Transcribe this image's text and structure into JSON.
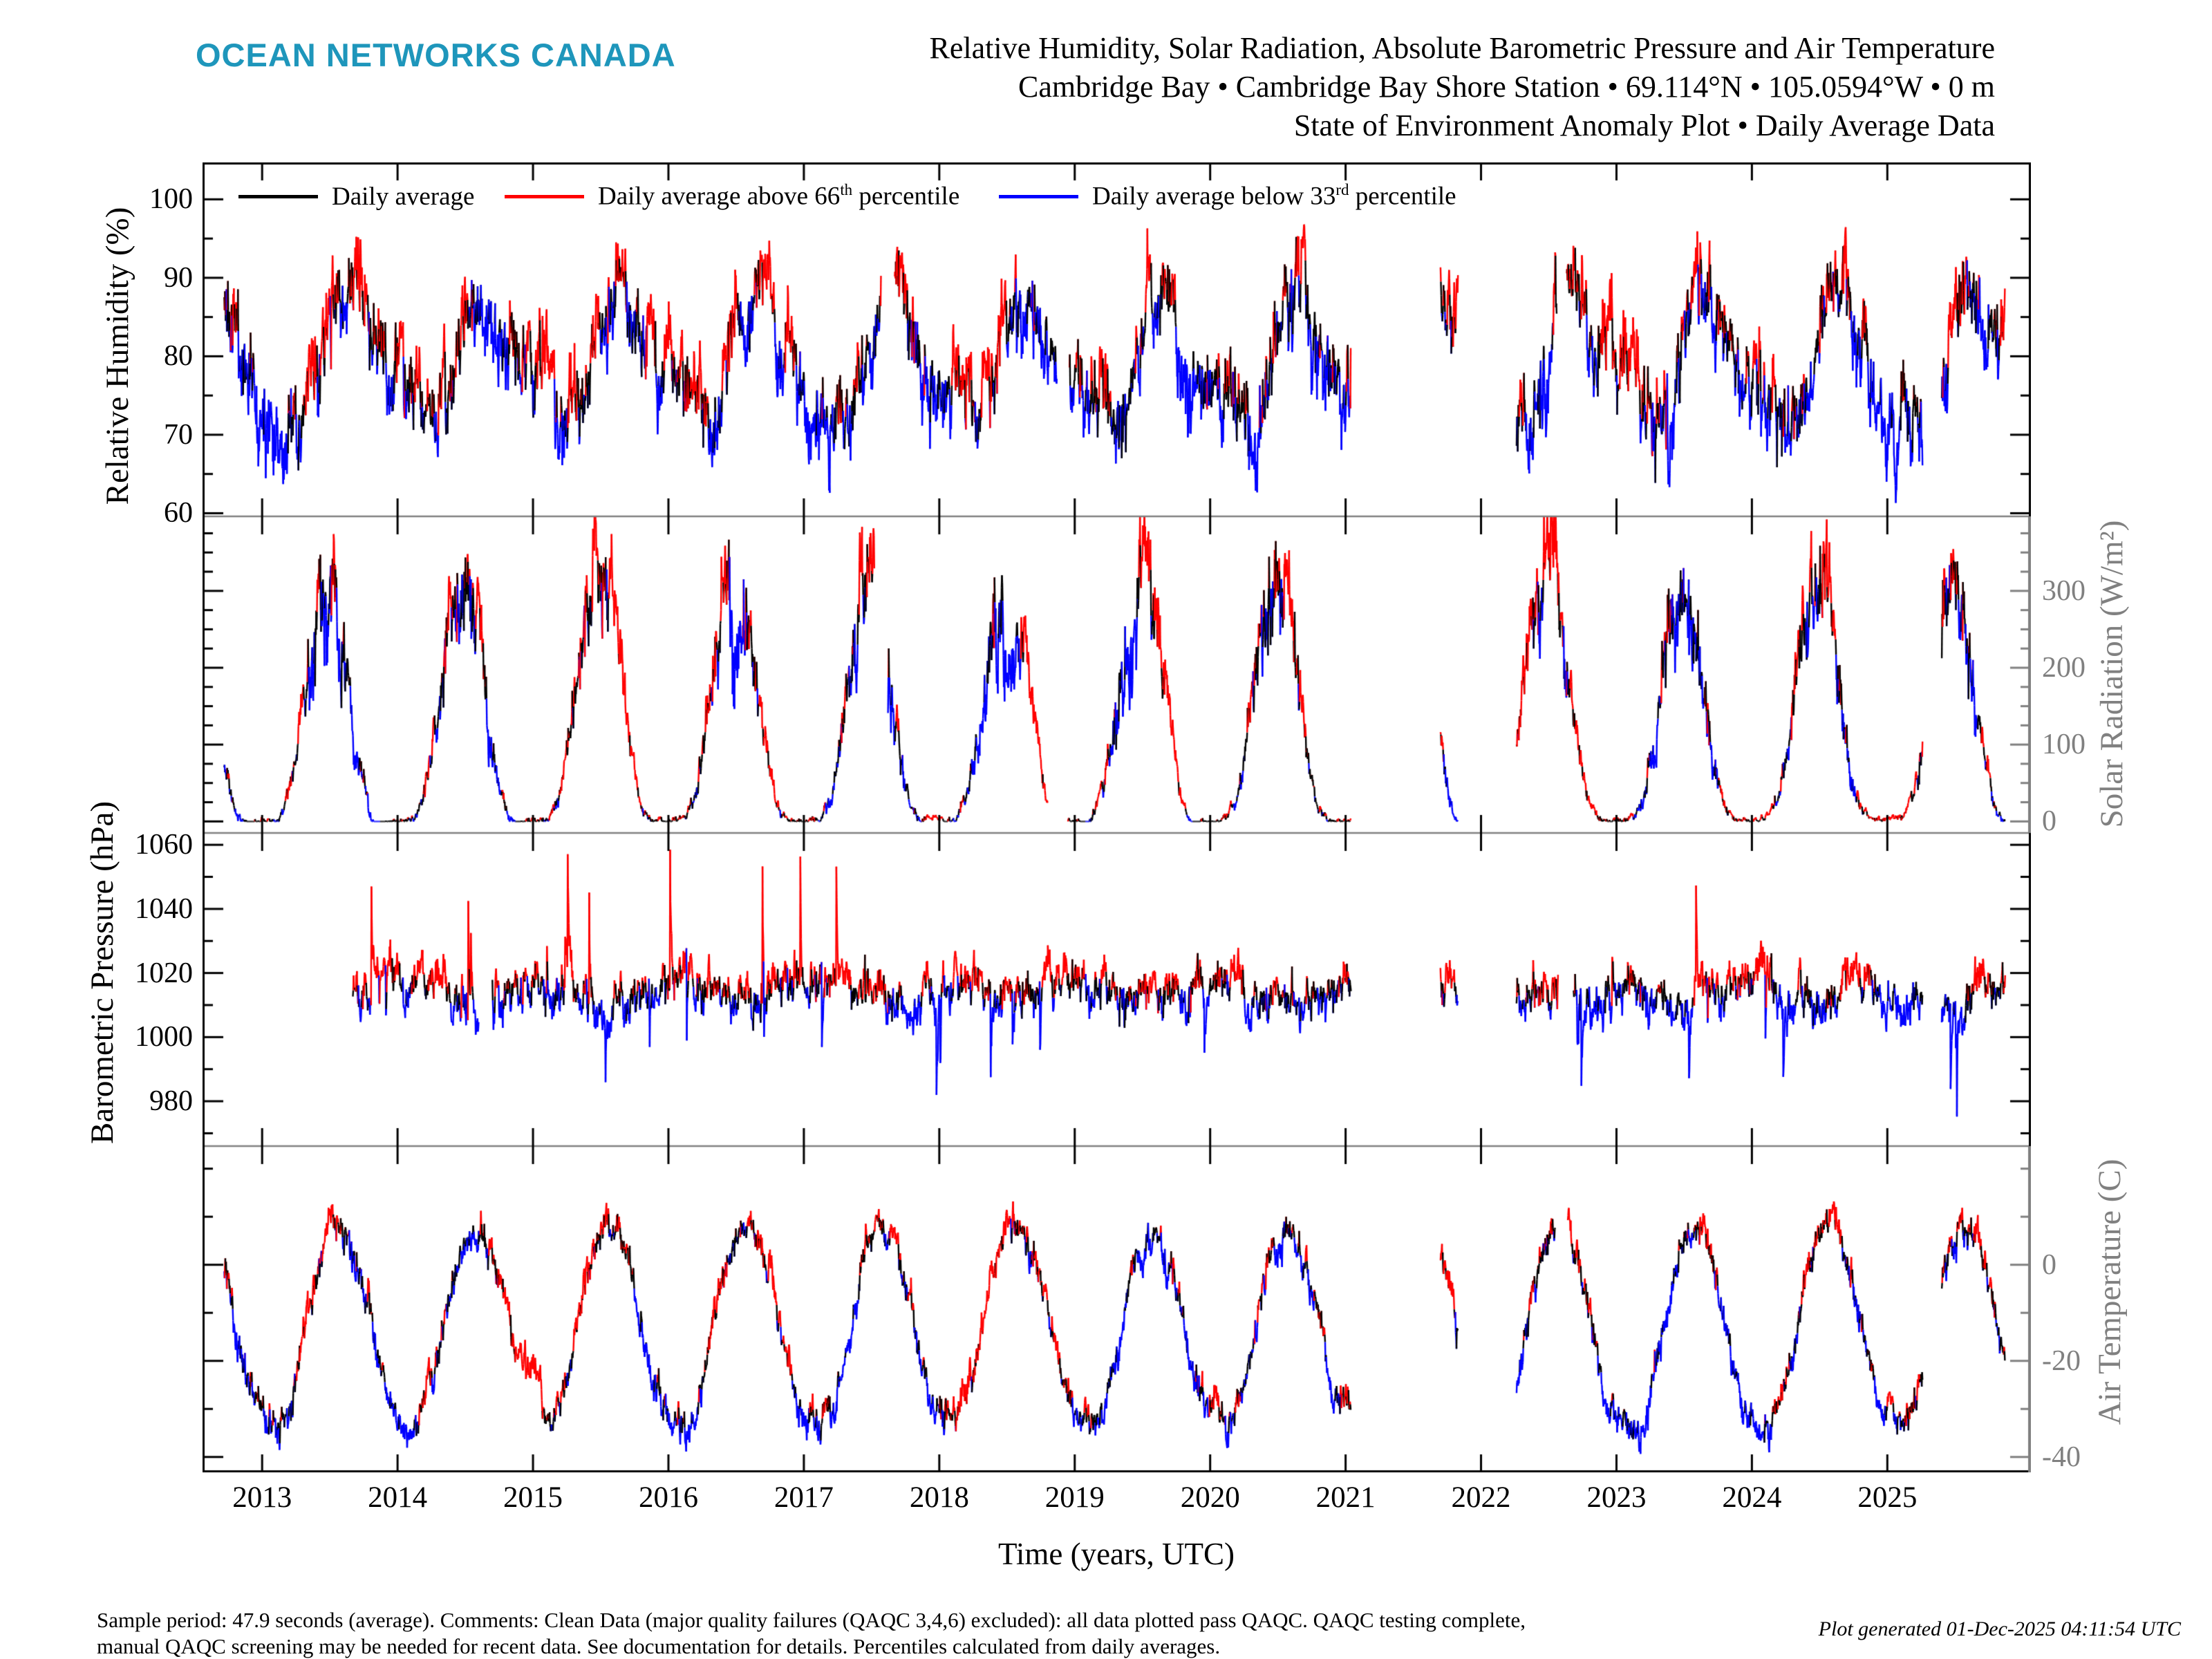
{
  "header": {
    "logo": "OCEAN NETWORKS CANADA",
    "title_line1": "Relative Humidity, Solar Radiation, Absolute Barometric Pressure and Air Temperature",
    "title_line2": "Cambridge Bay • Cambridge Bay Shore Station • 69.114°N • 105.0594°W • 0 m",
    "title_line3": "State of Environment Anomaly Plot • Daily Average Data"
  },
  "legend": [
    {
      "label_pre": "Daily average",
      "label_sup": "",
      "label_post": "",
      "color": "#000000"
    },
    {
      "label_pre": "Daily average above 66",
      "label_sup": "th",
      "label_post": " percentile",
      "color": "#ff0000"
    },
    {
      "label_pre": "Daily average below 33",
      "label_sup": "rd",
      "label_post": " percentile",
      "color": "#0000ff"
    }
  ],
  "footer": {
    "line1": "Sample period: 47.9 seconds (average). Comments: Clean Data (major quality failures (QAQC 3,4,6) excluded): all data plotted pass QAQC. QAQC testing complete,",
    "line2": "manual QAQC screening may be needed for recent data. See documentation for details. Percentiles calculated from daily averages.",
    "generated": "Plot generated 01-Dec-2025 04:11:54 UTC"
  },
  "chart_data": {
    "type": "line",
    "x_axis": {
      "label": "Time (years, UTC)",
      "ticks": [
        2013,
        2014,
        2015,
        2016,
        2017,
        2018,
        2019,
        2020,
        2021,
        2022,
        2023,
        2024,
        2025
      ],
      "xlim": [
        2012.56,
        2026.06
      ]
    },
    "series_colors": {
      "daily_average": "#000000",
      "above_66th_percentile": "#ff0000",
      "below_33rd_percentile": "#0000ff"
    },
    "axis_gray": "#808080",
    "panels": [
      {
        "id": "relative_humidity",
        "ylabel": "Relative Humidity (%)",
        "label_side": "left",
        "axis_color": "#000000",
        "ylim": [
          59.6,
          104.7
        ],
        "yticks": [
          60,
          70,
          80,
          90,
          100
        ],
        "minor_step": 5,
        "monthly_mean": [
          77,
          75,
          73,
          72,
          74,
          80,
          86,
          89,
          87,
          83,
          80,
          78
        ],
        "spread": 4.0,
        "data_start": 2012.72,
        "data_end": 2025.87,
        "gaps": [
          [
            2017.57,
            2017.67
          ],
          [
            2018.87,
            2018.96
          ],
          [
            2021.04,
            2021.7
          ],
          [
            2021.83,
            2022.26
          ],
          [
            2022.56,
            2022.63
          ],
          [
            2025.26,
            2025.4
          ]
        ],
        "synthesis": {
          "seed": 11,
          "noise": 5.0,
          "clip_min": 58,
          "clip_max": 99.8
        }
      },
      {
        "id": "solar_radiation",
        "ylabel": "Solar Radiation (W/m²)",
        "label_side": "right",
        "axis_color": "#808080",
        "ylim": [
          -15,
          397
        ],
        "yticks": [
          0,
          100,
          200,
          300
        ],
        "minor_step": 25,
        "monthly_mean": [
          0,
          4,
          40,
          130,
          240,
          310,
          295,
          205,
          90,
          18,
          1,
          0
        ],
        "spread_base": 4,
        "spread_scale": 0.16,
        "data_start": 2012.72,
        "data_end": 2025.87,
        "gaps": [
          [
            2017.52,
            2017.62
          ],
          [
            2018.8,
            2018.95
          ],
          [
            2021.04,
            2021.7
          ],
          [
            2021.83,
            2022.26
          ],
          [
            2025.26,
            2025.4
          ]
        ],
        "synthesis": {
          "seed": 23,
          "noise_base": 4,
          "noise_scale": 0.2,
          "clip_min": 0
        }
      },
      {
        "id": "barometric_pressure",
        "ylabel": "Barometric Pressure (hPa)",
        "label_side": "left",
        "axis_color": "#000000",
        "ylim": [
          966,
          1063.7
        ],
        "yticks": [
          980,
          1000,
          1020,
          1040,
          1060
        ],
        "minor_step": 10,
        "monthly_mean": [
          1016,
          1016,
          1015,
          1013,
          1013,
          1012,
          1012,
          1012,
          1013,
          1014,
          1015,
          1016
        ],
        "spread": 5.5,
        "data_start": 2013.67,
        "data_end": 2025.87,
        "gaps": [
          [
            2014.6,
            2014.7
          ],
          [
            2021.04,
            2021.7
          ],
          [
            2021.83,
            2022.26
          ],
          [
            2022.57,
            2022.68
          ],
          [
            2025.26,
            2025.4
          ]
        ],
        "synthesis": {
          "seed": 37,
          "noise": 6.0,
          "spikes": true
        }
      },
      {
        "id": "air_temperature",
        "ylabel": "Air Temperature (C)",
        "label_side": "right",
        "axis_color": "#808080",
        "ylim": [
          -43.2,
          24.7
        ],
        "yticks": [
          0,
          -20,
          -40
        ],
        "minor_step": 10,
        "monthly_mean": [
          -31,
          -33,
          -29,
          -19,
          -7,
          3,
          8,
          6,
          0,
          -9,
          -21,
          -28
        ],
        "spread": 2.7,
        "data_start": 2012.72,
        "data_end": 2025.87,
        "gaps": [
          [
            2021.04,
            2021.7
          ],
          [
            2021.83,
            2022.26
          ],
          [
            2022.55,
            2022.64
          ],
          [
            2025.26,
            2025.4
          ]
        ],
        "synthesis": {
          "seed": 53,
          "noise": 3.2
        }
      }
    ]
  }
}
